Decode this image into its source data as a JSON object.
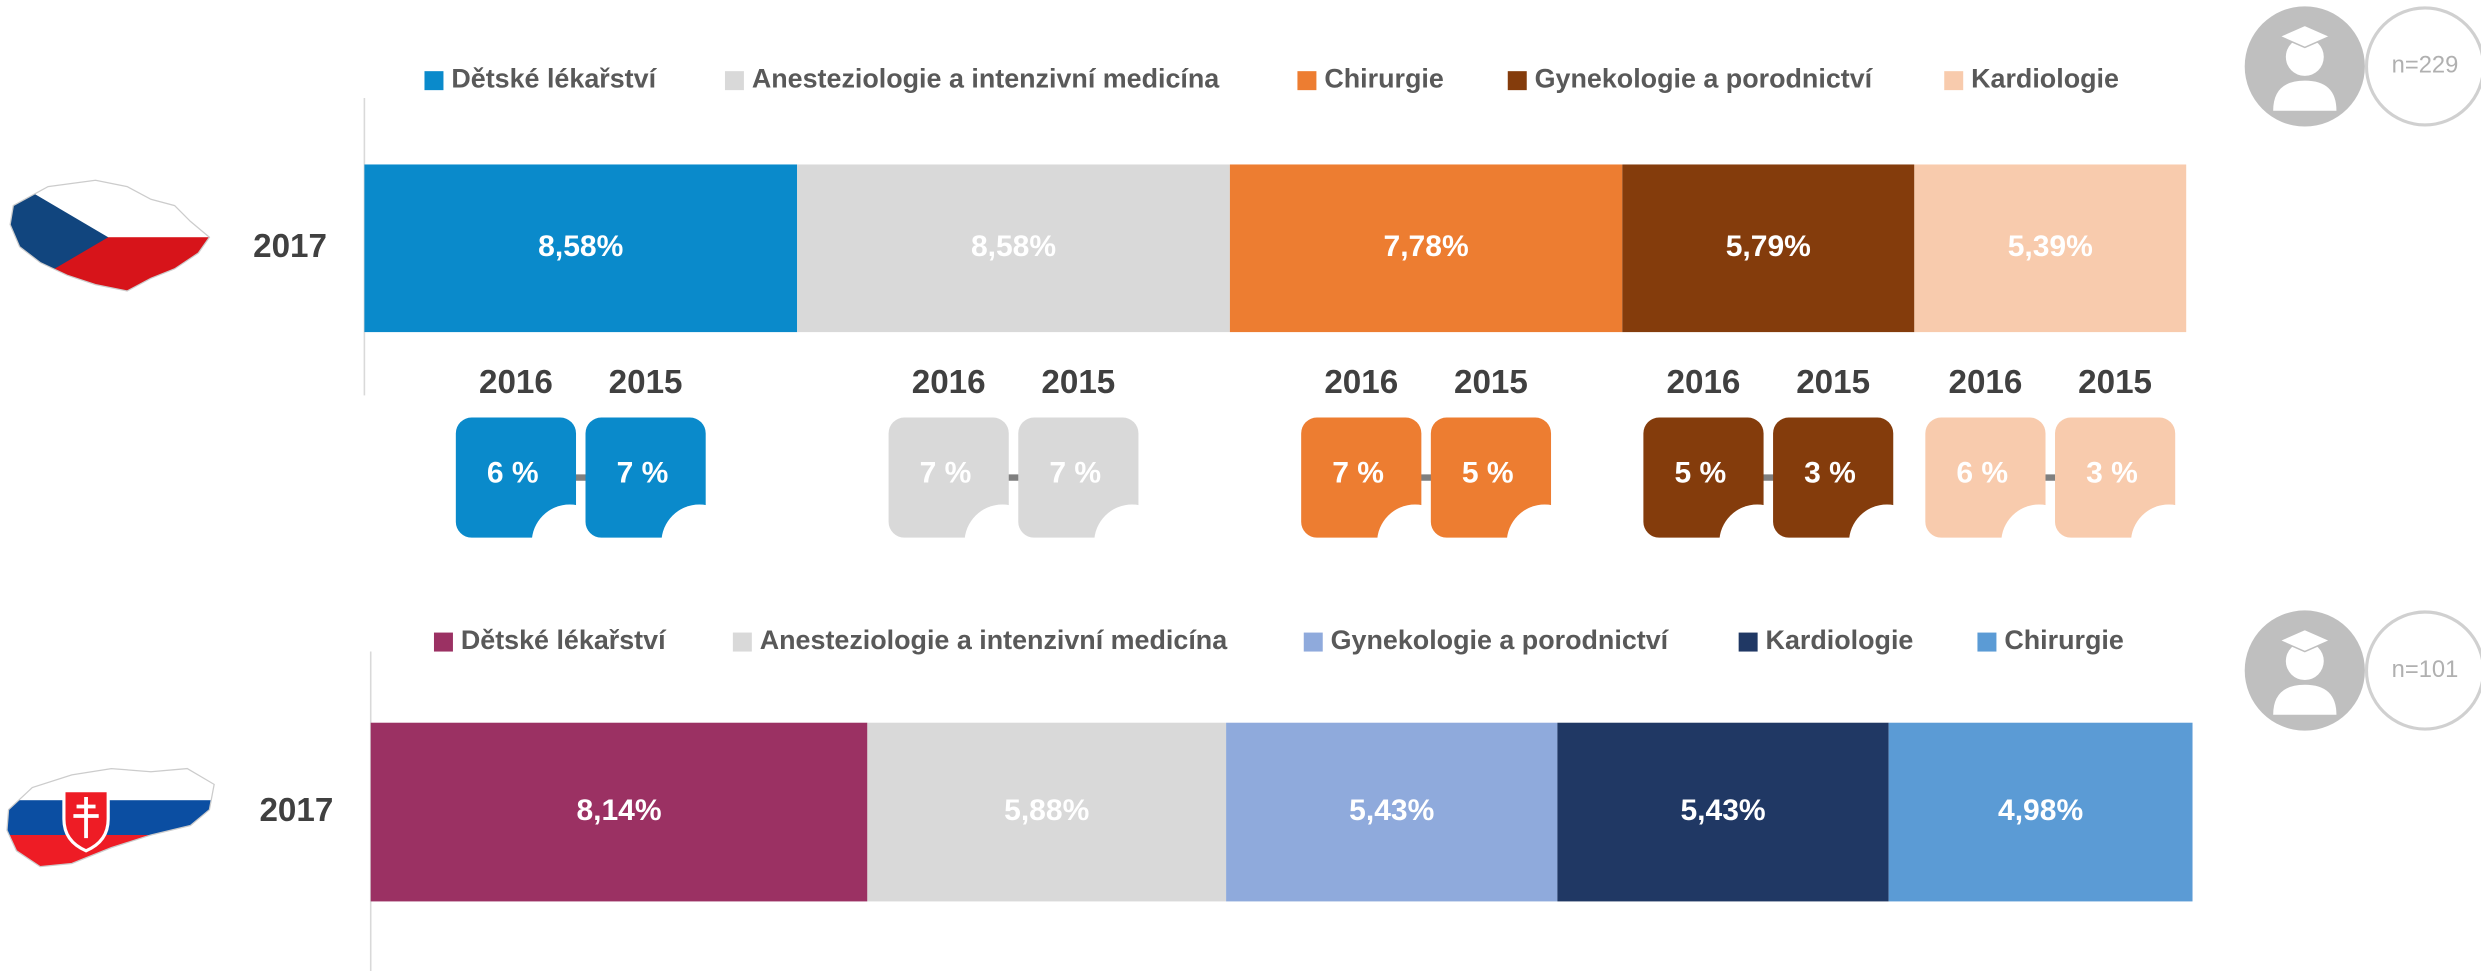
{
  "chart_data": [
    {
      "type": "bar",
      "stacked": true,
      "orientation": "horizontal",
      "categories": [
        "2017"
      ],
      "sample": "n=229",
      "previous_years": [
        "2016",
        "2015"
      ],
      "series": [
        {
          "name": "Dětské lékařství",
          "color": "#0a8acb",
          "values": [
            8.58
          ],
          "value_labels": [
            "8,58%"
          ],
          "previous_values": [
            6,
            7
          ],
          "previous_labels": [
            "6 %",
            "7 %"
          ]
        },
        {
          "name": "Anesteziologie a intenzivní medicína",
          "color": "#d9d9d9",
          "values": [
            8.58
          ],
          "value_labels": [
            "8,58%"
          ],
          "previous_values": [
            7,
            7
          ],
          "previous_labels": [
            "7 %",
            "7 %"
          ]
        },
        {
          "name": "Chirurgie",
          "color": "#ed7d31",
          "values": [
            7.78
          ],
          "value_labels": [
            "7,78%"
          ],
          "previous_values": [
            7,
            5
          ],
          "previous_labels": [
            "7 %",
            "5 %"
          ]
        },
        {
          "name": "Gynekologie a porodnictví",
          "color": "#843c0c",
          "values": [
            5.79
          ],
          "value_labels": [
            "5,79%"
          ],
          "previous_values": [
            5,
            3
          ],
          "previous_labels": [
            "5 %",
            "3 %"
          ]
        },
        {
          "name": "Kardiologie",
          "color": "#f8cbad",
          "values": [
            5.39
          ],
          "value_labels": [
            "5,39%"
          ],
          "previous_values": [
            6,
            3
          ],
          "previous_labels": [
            "6 %",
            "3 %"
          ]
        }
      ]
    },
    {
      "type": "bar",
      "stacked": true,
      "orientation": "horizontal",
      "categories": [
        "2017"
      ],
      "sample": "n=101",
      "series": [
        {
          "name": "Dětské lékařství",
          "color": "#9b3163",
          "values": [
            8.14
          ],
          "value_labels": [
            "8,14%"
          ]
        },
        {
          "name": "Anesteziologie a intenzivní medicína",
          "color": "#d9d9d9",
          "values": [
            5.88
          ],
          "value_labels": [
            "5,88%"
          ]
        },
        {
          "name": "Gynekologie a porodnictví",
          "color": "#8faadc",
          "values": [
            5.43
          ],
          "value_labels": [
            "5,43%"
          ]
        },
        {
          "name": "Kardiologie",
          "color": "#203864",
          "values": [
            5.43
          ],
          "value_labels": [
            "5,43%"
          ]
        },
        {
          "name": "Chirurgie",
          "color": "#5b9bd5",
          "values": [
            4.98
          ],
          "value_labels": [
            "4,98%"
          ]
        }
      ]
    }
  ]
}
